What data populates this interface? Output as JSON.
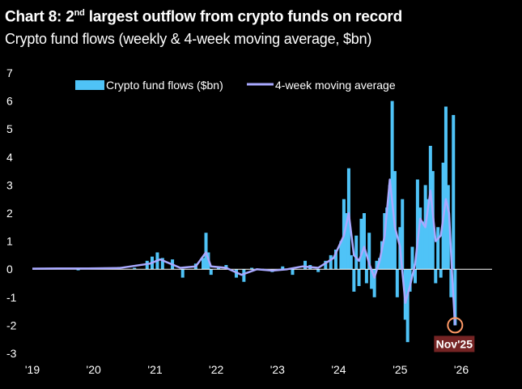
{
  "title_prefix": "Chart 8: 2",
  "title_sup": "nd",
  "title_suffix": " largest outflow from crypto funds on record",
  "subtitle": "Crypto fund flows (weekly & 4-week moving average, $bn)",
  "colors": {
    "background": "#000000",
    "bars": "#4fc3f7",
    "moving_average": "#a9a9ff",
    "zero_line": "#ffffff",
    "annotation_circle": "#ff9966",
    "annotation_box": "#8a2a2a"
  },
  "chart_data": {
    "type": "bar",
    "title": "",
    "xlabel": "",
    "ylabel": "",
    "ylim": [
      -3,
      7
    ],
    "yticks": [
      "7",
      "6",
      "5",
      "4",
      "3",
      "2",
      "1",
      "0",
      "-1",
      "-2",
      "-3"
    ],
    "xticks": [
      "'19",
      "'20",
      "'21",
      "'22",
      "'23",
      "'24",
      "'25",
      "'26"
    ],
    "grid": false,
    "legend_position": "top-left",
    "annotation": "Nov'25",
    "x_start": "2019-01-01",
    "x_end": "2026-01-01",
    "series": [
      {
        "name": "Crypto fund flows ($bn)",
        "type": "bar",
        "x": [
          "2019-01-15",
          "2019-04-01",
          "2019-07-01",
          "2019-10-01",
          "2020-01-01",
          "2020-03-15",
          "2020-06-01",
          "2020-09-01",
          "2020-11-15",
          "2020-12-15",
          "2021-01-15",
          "2021-02-15",
          "2021-04-15",
          "2021-06-15",
          "2021-09-01",
          "2021-10-15",
          "2021-11-01",
          "2021-11-15",
          "2021-12-01",
          "2022-01-15",
          "2022-03-01",
          "2022-05-01",
          "2022-06-15",
          "2022-08-01",
          "2022-10-01",
          "2022-12-01",
          "2023-02-01",
          "2023-04-01",
          "2023-06-15",
          "2023-07-15",
          "2023-09-01",
          "2023-10-15",
          "2023-11-15",
          "2023-12-15",
          "2024-01-15",
          "2024-02-01",
          "2024-02-15",
          "2024-03-01",
          "2024-03-15",
          "2024-04-01",
          "2024-04-15",
          "2024-05-01",
          "2024-05-15",
          "2024-06-01",
          "2024-06-15",
          "2024-07-01",
          "2024-07-15",
          "2024-08-01",
          "2024-08-15",
          "2024-09-01",
          "2024-09-15",
          "2024-10-01",
          "2024-10-15",
          "2024-11-01",
          "2024-11-15",
          "2024-12-01",
          "2024-12-15",
          "2025-01-01",
          "2025-01-15",
          "2025-02-01",
          "2025-02-15",
          "2025-03-01",
          "2025-03-15",
          "2025-04-01",
          "2025-04-15",
          "2025-05-01",
          "2025-05-15",
          "2025-06-01",
          "2025-06-15",
          "2025-07-01",
          "2025-07-15",
          "2025-08-01",
          "2025-08-15",
          "2025-09-01",
          "2025-09-15",
          "2025-10-01",
          "2025-10-15",
          "2025-11-01",
          "2025-11-15",
          "2025-11-25"
        ],
        "values": [
          0.02,
          0.05,
          0.03,
          -0.04,
          0.06,
          0.04,
          0.08,
          0.05,
          0.3,
          0.45,
          0.6,
          0.4,
          0.35,
          -0.3,
          0.2,
          0.4,
          1.3,
          0.6,
          -0.2,
          0.1,
          0.15,
          -0.3,
          -0.45,
          0.05,
          0.02,
          -0.1,
          0.1,
          -0.2,
          0.3,
          0.15,
          -0.1,
          0.3,
          0.5,
          0.7,
          1.0,
          2.5,
          2.0,
          3.6,
          0.5,
          -0.8,
          1.2,
          -0.6,
          1.8,
          2.0,
          -0.5,
          1.3,
          -0.7,
          -1.0,
          0.3,
          0.4,
          1.0,
          2.0,
          2.2,
          3.0,
          6.0,
          3.5,
          -1.0,
          1.5,
          2.5,
          -1.8,
          -2.6,
          -0.8,
          0.8,
          -0.5,
          3.2,
          2.2,
          1.7,
          3.0,
          2.5,
          4.4,
          3.5,
          -0.5,
          1.5,
          -0.3,
          3.8,
          5.8,
          3.0,
          -1.0,
          5.5,
          -2.0
        ]
      },
      {
        "name": "4-week moving average",
        "type": "line",
        "x": [
          "2019-01-01",
          "2019-06-01",
          "2019-12-01",
          "2020-06-01",
          "2020-12-01",
          "2021-02-01",
          "2021-06-01",
          "2021-09-01",
          "2021-11-01",
          "2021-12-01",
          "2022-03-01",
          "2022-06-01",
          "2022-09-01",
          "2022-12-01",
          "2023-03-01",
          "2023-06-01",
          "2023-09-01",
          "2023-12-01",
          "2024-02-01",
          "2024-03-01",
          "2024-04-01",
          "2024-05-01",
          "2024-06-01",
          "2024-07-01",
          "2024-08-01",
          "2024-09-01",
          "2024-10-01",
          "2024-11-01",
          "2024-12-01",
          "2025-01-01",
          "2025-02-01",
          "2025-03-01",
          "2025-04-01",
          "2025-05-01",
          "2025-06-01",
          "2025-07-01",
          "2025-08-01",
          "2025-09-01",
          "2025-10-01",
          "2025-10-20",
          "2025-11-10",
          "2025-11-25"
        ],
        "values": [
          0.02,
          0.03,
          0.03,
          0.04,
          0.2,
          0.35,
          0.05,
          0.1,
          0.6,
          0.1,
          0.05,
          -0.2,
          0.0,
          -0.05,
          0.0,
          0.1,
          0.05,
          0.4,
          1.2,
          2.0,
          0.5,
          0.3,
          0.8,
          0.2,
          -0.3,
          0.3,
          1.2,
          3.2,
          1.5,
          0.8,
          -1.2,
          -0.6,
          0.2,
          1.8,
          1.5,
          2.8,
          1.0,
          1.2,
          2.5,
          2.0,
          -0.5,
          -2.0
        ]
      }
    ]
  }
}
